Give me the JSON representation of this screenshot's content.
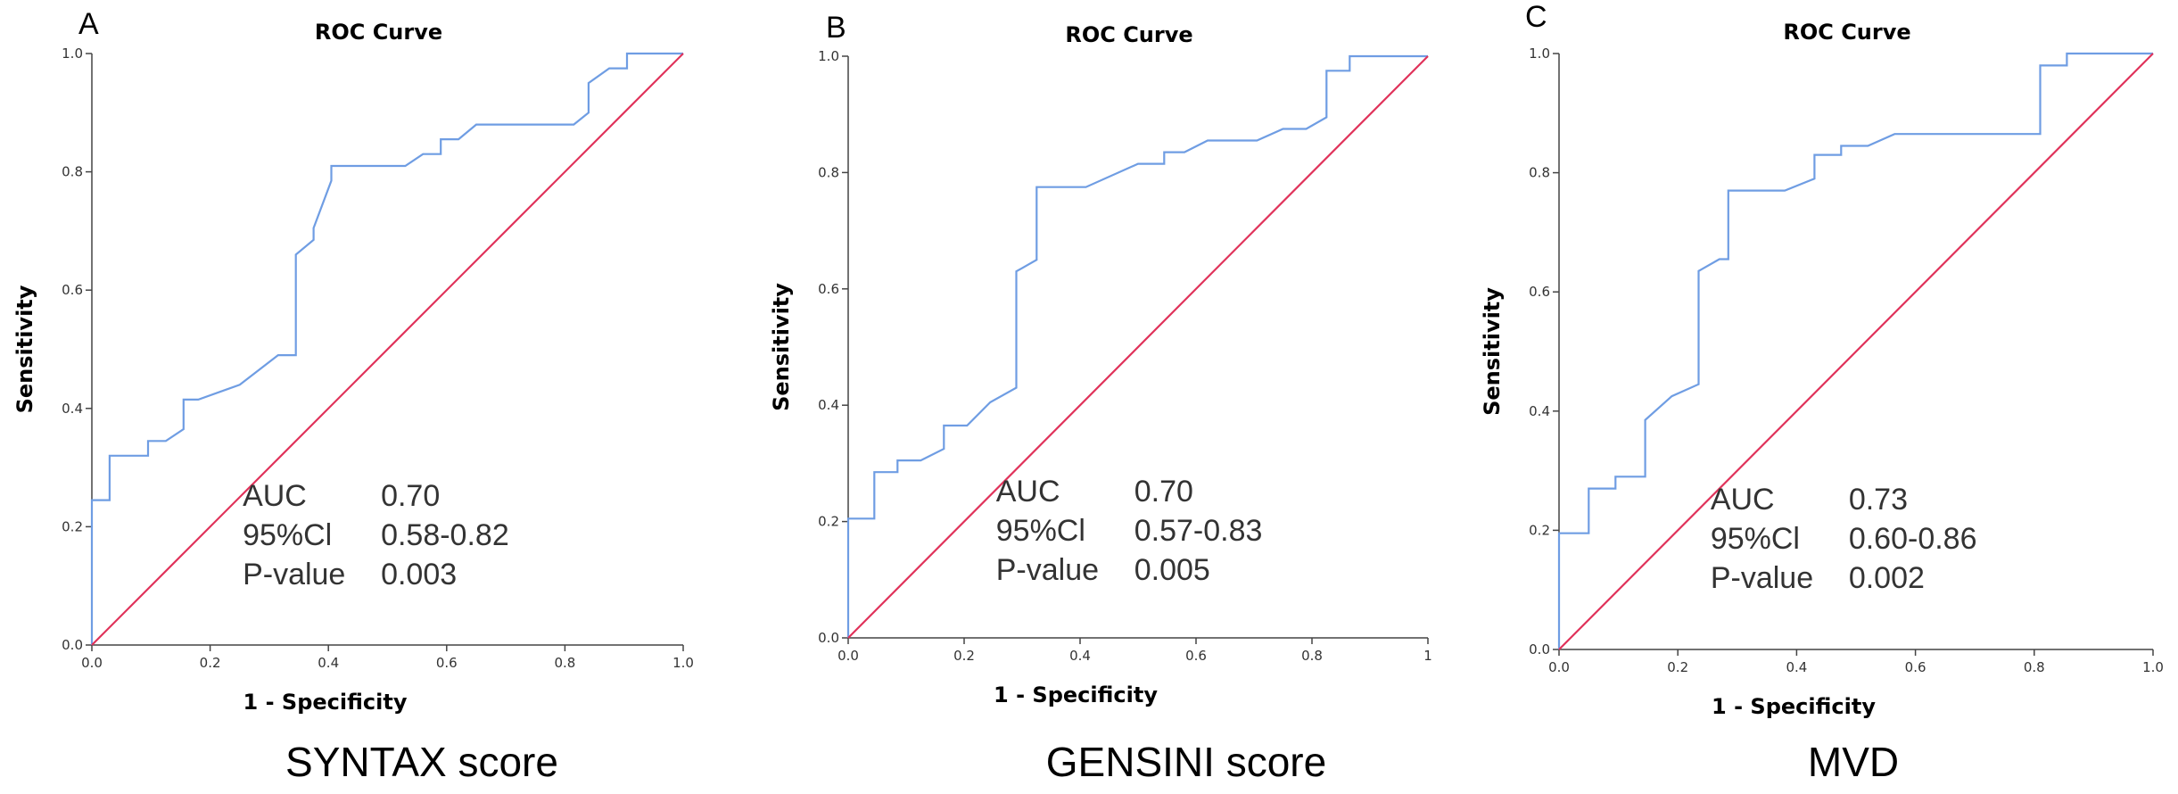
{
  "colors": {
    "roc_curve": "#6f9de3",
    "reference_line": "#e0325a",
    "axis": "#444444"
  },
  "chart_data": [
    {
      "type": "line",
      "panel_label": "A",
      "title": "ROC Curve",
      "xlabel": "1 - Specificity",
      "ylabel": "Sensitivity",
      "caption": "SYNTAX score",
      "xlim": [
        0,
        1
      ],
      "ylim": [
        0,
        1
      ],
      "x_ticks": [
        "0.0",
        "0.2",
        "0.4",
        "0.6",
        "0.8",
        "1.0"
      ],
      "y_ticks": [
        "0.0",
        "0.2",
        "0.4",
        "0.6",
        "0.8",
        "1.0"
      ],
      "grid": false,
      "series": [
        {
          "role": "roc",
          "points": [
            [
              0,
              0
            ],
            [
              0,
              0.245
            ],
            [
              0.03,
              0.245
            ],
            [
              0.03,
              0.32
            ],
            [
              0.095,
              0.32
            ],
            [
              0.095,
              0.345
            ],
            [
              0.125,
              0.345
            ],
            [
              0.155,
              0.365
            ],
            [
              0.155,
              0.415
            ],
            [
              0.18,
              0.415
            ],
            [
              0.25,
              0.44
            ],
            [
              0.315,
              0.49
            ],
            [
              0.345,
              0.49
            ],
            [
              0.345,
              0.66
            ],
            [
              0.375,
              0.685
            ],
            [
              0.375,
              0.705
            ],
            [
              0.405,
              0.785
            ],
            [
              0.405,
              0.81
            ],
            [
              0.53,
              0.81
            ],
            [
              0.56,
              0.83
            ],
            [
              0.59,
              0.83
            ],
            [
              0.59,
              0.855
            ],
            [
              0.62,
              0.855
            ],
            [
              0.65,
              0.88
            ],
            [
              0.815,
              0.88
            ],
            [
              0.84,
              0.9
            ],
            [
              0.84,
              0.95
            ],
            [
              0.875,
              0.975
            ],
            [
              0.905,
              0.975
            ],
            [
              0.905,
              1.0
            ],
            [
              1.0,
              1.0
            ]
          ]
        },
        {
          "role": "reference",
          "points": [
            [
              0,
              0
            ],
            [
              1,
              1
            ]
          ]
        }
      ],
      "annotations": [
        {
          "label": "AUC",
          "value": "0.70"
        },
        {
          "label": "95%Cl",
          "value": "0.58-0.82"
        },
        {
          "label": "P-value",
          "value": "0.003"
        }
      ]
    },
    {
      "type": "line",
      "panel_label": "B",
      "title": "ROC Curve",
      "xlabel": "1 - Specificity",
      "ylabel": "Sensitivity",
      "caption": "GENSINI score",
      "xlim": [
        0,
        1
      ],
      "ylim": [
        0,
        1
      ],
      "x_ticks": [
        "0.0",
        "0.2",
        "0.4",
        "0.6",
        "0.8",
        "1"
      ],
      "y_ticks": [
        "0.0",
        "0.2",
        "0.4",
        "0.6",
        "0.8",
        "1.0"
      ],
      "grid": false,
      "series": [
        {
          "role": "roc",
          "points": [
            [
              0,
              0
            ],
            [
              0,
              0.205
            ],
            [
              0.045,
              0.205
            ],
            [
              0.045,
              0.285
            ],
            [
              0.085,
              0.285
            ],
            [
              0.085,
              0.305
            ],
            [
              0.125,
              0.305
            ],
            [
              0.165,
              0.325
            ],
            [
              0.165,
              0.365
            ],
            [
              0.205,
              0.365
            ],
            [
              0.245,
              0.405
            ],
            [
              0.29,
              0.43
            ],
            [
              0.29,
              0.63
            ],
            [
              0.325,
              0.65
            ],
            [
              0.325,
              0.775
            ],
            [
              0.41,
              0.775
            ],
            [
              0.5,
              0.815
            ],
            [
              0.545,
              0.815
            ],
            [
              0.545,
              0.835
            ],
            [
              0.58,
              0.835
            ],
            [
              0.62,
              0.855
            ],
            [
              0.705,
              0.855
            ],
            [
              0.75,
              0.875
            ],
            [
              0.79,
              0.875
            ],
            [
              0.825,
              0.895
            ],
            [
              0.825,
              0.975
            ],
            [
              0.865,
              0.975
            ],
            [
              0.865,
              1.0
            ],
            [
              1.0,
              1.0
            ]
          ]
        },
        {
          "role": "reference",
          "points": [
            [
              0,
              0
            ],
            [
              1,
              1
            ]
          ]
        }
      ],
      "annotations": [
        {
          "label": "AUC",
          "value": "0.70"
        },
        {
          "label": "95%Cl",
          "value": "0.57-0.83"
        },
        {
          "label": "P-value",
          "value": "0.005"
        }
      ]
    },
    {
      "type": "line",
      "panel_label": "C",
      "title": "ROC Curve",
      "xlabel": "1 - Specificity",
      "ylabel": "Sensitivity",
      "caption": "MVD",
      "xlim": [
        0,
        1
      ],
      "ylim": [
        0,
        1
      ],
      "x_ticks": [
        "0.0",
        "0.2",
        "0.4",
        "0.6",
        "0.8",
        "1.0"
      ],
      "y_ticks": [
        "0.0",
        "0.2",
        "0.4",
        "0.6",
        "0.8",
        "1.0"
      ],
      "grid": false,
      "series": [
        {
          "role": "roc",
          "points": [
            [
              0,
              0
            ],
            [
              0,
              0.195
            ],
            [
              0.05,
              0.195
            ],
            [
              0.05,
              0.27
            ],
            [
              0.095,
              0.27
            ],
            [
              0.095,
              0.29
            ],
            [
              0.145,
              0.29
            ],
            [
              0.145,
              0.385
            ],
            [
              0.19,
              0.425
            ],
            [
              0.235,
              0.445
            ],
            [
              0.235,
              0.635
            ],
            [
              0.27,
              0.655
            ],
            [
              0.285,
              0.655
            ],
            [
              0.285,
              0.77
            ],
            [
              0.38,
              0.77
            ],
            [
              0.43,
              0.79
            ],
            [
              0.43,
              0.83
            ],
            [
              0.475,
              0.83
            ],
            [
              0.475,
              0.845
            ],
            [
              0.52,
              0.845
            ],
            [
              0.565,
              0.865
            ],
            [
              0.81,
              0.865
            ],
            [
              0.81,
              0.98
            ],
            [
              0.855,
              0.98
            ],
            [
              0.855,
              1.0
            ],
            [
              1.0,
              1.0
            ]
          ]
        },
        {
          "role": "reference",
          "points": [
            [
              0,
              0
            ],
            [
              1,
              1
            ]
          ]
        }
      ],
      "annotations": [
        {
          "label": "AUC",
          "value": "0.73"
        },
        {
          "label": "95%Cl",
          "value": "0.60-0.86"
        },
        {
          "label": "P-value",
          "value": "0.002"
        }
      ]
    }
  ]
}
